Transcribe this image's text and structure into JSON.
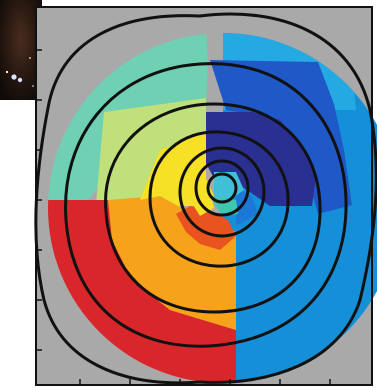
{
  "chart_data": {
    "type": "heatmap",
    "title": "",
    "xlabel": "",
    "ylabel": "",
    "grid": false,
    "legend": "none",
    "background_color": "#a9a9a9",
    "frame_color": "#111111",
    "contour_color": "#111111",
    "colormap": "jet",
    "field_bins": [
      {
        "sector": "outer-top-left",
        "level": 0.35,
        "color": "#6fd0b4"
      },
      {
        "sector": "outer-left",
        "level": 0.55,
        "color": "#bfe07a"
      },
      {
        "sector": "outer-bottom-left",
        "level": 0.98,
        "color": "#d8262b"
      },
      {
        "sector": "mid-bottom-left",
        "level": 0.82,
        "color": "#f7a21b"
      },
      {
        "sector": "mid-left",
        "level": 0.7,
        "color": "#f6e126"
      },
      {
        "sector": "inner-bottom",
        "level": 0.9,
        "color": "#e8531f"
      },
      {
        "sector": "outer-top-right",
        "level": 0.3,
        "color": "#25a9e3"
      },
      {
        "sector": "outer-right",
        "level": 0.22,
        "color": "#158fd8"
      },
      {
        "sector": "inner-top-right",
        "level": 0.08,
        "color": "#2a2f92"
      },
      {
        "sector": "mid-top-right",
        "level": 0.14,
        "color": "#1f58c7"
      }
    ],
    "contour_levels": [
      1,
      2,
      3,
      4,
      5,
      6
    ],
    "inset": {
      "image": "star-field-thumbnail"
    }
  }
}
